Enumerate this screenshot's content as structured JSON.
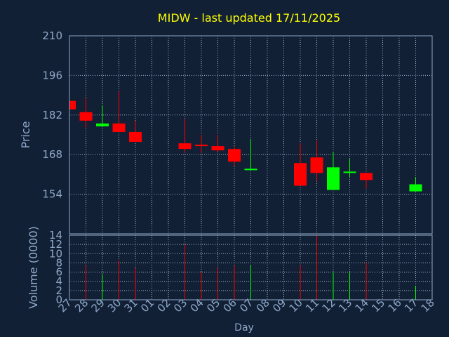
{
  "chart_data": {
    "type": "candlestick",
    "title": "MIDW - last updated 17/11/2025",
    "xlabel": "Day",
    "price_panel": {
      "ylabel": "Price",
      "ylim": [
        140,
        210
      ],
      "yticks": [
        154,
        168,
        182,
        196,
        210
      ]
    },
    "volume_panel": {
      "ylabel": "Volume (0000)",
      "ylim": [
        0,
        14
      ],
      "yticks": [
        0,
        2,
        4,
        6,
        8,
        10,
        12,
        14
      ]
    },
    "x_tick_labels": [
      "27",
      "28",
      "29",
      "30",
      "31",
      "01",
      "02",
      "03",
      "04",
      "05",
      "06",
      "07",
      "08",
      "09",
      "10",
      "11",
      "12",
      "13",
      "14",
      "15",
      "16",
      "17",
      "18"
    ],
    "grid": true,
    "colors": {
      "up": "#00ff00",
      "down": "#ff0000",
      "background": "#112035",
      "title": "#ffff00",
      "axis_text": "#8fa8c8",
      "axis_line": "#8fa8c8",
      "grid": "#9fb0c8"
    },
    "candles": [
      {
        "day": "27",
        "open": 187.0,
        "high": 187.0,
        "low": 184.0,
        "close": 184.0,
        "volume": 0
      },
      {
        "day": "28",
        "open": 183.0,
        "high": 188.0,
        "low": 177.5,
        "close": 180.0,
        "volume": 7.5
      },
      {
        "day": "29",
        "open": 178.0,
        "high": 185.5,
        "low": 178.0,
        "close": 179.0,
        "volume": 5.5
      },
      {
        "day": "30",
        "open": 179.0,
        "high": 190.5,
        "low": 176.0,
        "close": 176.0,
        "volume": 8.5
      },
      {
        "day": "31",
        "open": 176.0,
        "high": 180.0,
        "low": 172.5,
        "close": 172.5,
        "volume": 7.0
      },
      {
        "day": "03",
        "open": 172.0,
        "high": 180.5,
        "low": 168.5,
        "close": 170.0,
        "volume": 12.0
      },
      {
        "day": "04",
        "open": 171.5,
        "high": 175.0,
        "low": 168.5,
        "close": 171.0,
        "volume": 6.0
      },
      {
        "day": "05",
        "open": 171.0,
        "high": 175.0,
        "low": 169.0,
        "close": 169.5,
        "volume": 7.0
      },
      {
        "day": "06",
        "open": 170.0,
        "high": 171.0,
        "low": 164.0,
        "close": 165.5,
        "volume": 7.5
      },
      {
        "day": "07",
        "open": 162.5,
        "high": 173.5,
        "low": 162.5,
        "close": 163.0,
        "volume": 7.5
      },
      {
        "day": "10",
        "open": 165.0,
        "high": 172.0,
        "low": 157.0,
        "close": 157.0,
        "volume": 7.5
      },
      {
        "day": "11",
        "open": 167.0,
        "high": 173.0,
        "low": 158.5,
        "close": 161.5,
        "volume": 14.0
      },
      {
        "day": "12",
        "open": 155.5,
        "high": 169.0,
        "low": 155.5,
        "close": 163.5,
        "volume": 6.0
      },
      {
        "day": "13",
        "open": 161.5,
        "high": 166.5,
        "low": 160.0,
        "close": 162.0,
        "volume": 6.0
      },
      {
        "day": "14",
        "open": 161.5,
        "high": 161.5,
        "low": 156.0,
        "close": 159.0,
        "volume": 8.0
      },
      {
        "day": "17",
        "open": 155.0,
        "high": 160.0,
        "low": 155.0,
        "close": 157.5,
        "volume": 3.0
      }
    ]
  }
}
